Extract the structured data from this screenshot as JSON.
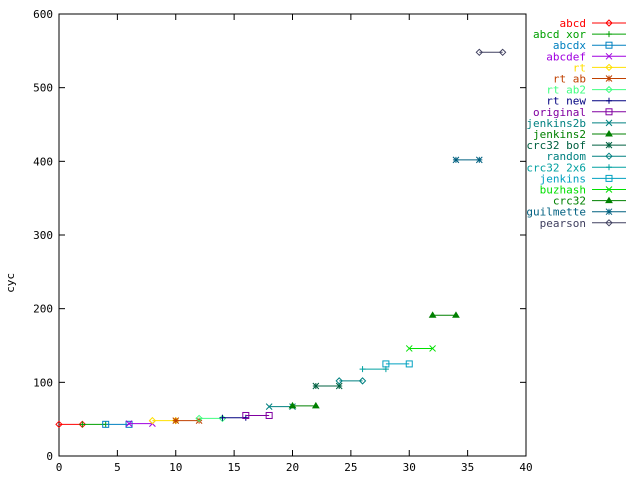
{
  "chart_data": {
    "type": "line",
    "title": "",
    "xlabel": "",
    "ylabel": "cyc",
    "xlim": [
      0,
      40
    ],
    "ylim": [
      0,
      600
    ],
    "x_ticks": [
      "0",
      "5",
      "10",
      "15",
      "20",
      "25",
      "30",
      "35",
      "40"
    ],
    "y_ticks": [
      "0",
      "100",
      "200",
      "300",
      "400",
      "500",
      "600"
    ],
    "grid": false,
    "legend_position": "right",
    "series": [
      {
        "name": "abcd",
        "color": "#ff0000",
        "marker": "diamond",
        "points": [
          [
            0,
            43
          ],
          [
            2,
            43
          ]
        ]
      },
      {
        "name": "abcd xor",
        "color": "#00a000",
        "marker": "plus",
        "points": [
          [
            2,
            43
          ],
          [
            4,
            43
          ]
        ]
      },
      {
        "name": "abcdx",
        "color": "#0080c0",
        "marker": "square",
        "points": [
          [
            4,
            43
          ],
          [
            6,
            43
          ]
        ]
      },
      {
        "name": "abcdef",
        "color": "#a000e0",
        "marker": "x",
        "points": [
          [
            6,
            44
          ],
          [
            8,
            44
          ]
        ]
      },
      {
        "name": "rt",
        "color": "#ffe000",
        "marker": "diamond",
        "points": [
          [
            8,
            48
          ],
          [
            10,
            48
          ]
        ]
      },
      {
        "name": "rt ab",
        "color": "#c04000",
        "marker": "star",
        "points": [
          [
            10,
            48
          ],
          [
            12,
            48
          ]
        ]
      },
      {
        "name": "rt ab2",
        "color": "#40ff80",
        "marker": "diamond",
        "points": [
          [
            12,
            51
          ],
          [
            14,
            51
          ]
        ]
      },
      {
        "name": "rt new",
        "color": "#000080",
        "marker": "plus",
        "points": [
          [
            14,
            52
          ],
          [
            16,
            52
          ]
        ]
      },
      {
        "name": "original",
        "color": "#8000a0",
        "marker": "square",
        "points": [
          [
            16,
            55
          ],
          [
            18,
            55
          ]
        ]
      },
      {
        "name": "jenkins2b",
        "color": "#008080",
        "marker": "x",
        "points": [
          [
            18,
            67
          ],
          [
            20,
            67
          ]
        ]
      },
      {
        "name": "jenkins2",
        "color": "#008000",
        "marker": "triangle",
        "points": [
          [
            20,
            68
          ],
          [
            22,
            68
          ]
        ]
      },
      {
        "name": "crc32 bof",
        "color": "#006040",
        "marker": "star",
        "points": [
          [
            22,
            95
          ],
          [
            24,
            95
          ]
        ]
      },
      {
        "name": "random",
        "color": "#008080",
        "marker": "diamond",
        "points": [
          [
            24,
            102
          ],
          [
            26,
            102
          ]
        ]
      },
      {
        "name": "crc32 2x6",
        "color": "#00a0a0",
        "marker": "plus",
        "points": [
          [
            26,
            118
          ],
          [
            28,
            118
          ]
        ]
      },
      {
        "name": "jenkins",
        "color": "#00a0c0",
        "marker": "square",
        "points": [
          [
            28,
            125
          ],
          [
            30,
            125
          ]
        ]
      },
      {
        "name": "buzhash",
        "color": "#00e000",
        "marker": "x",
        "points": [
          [
            30,
            146
          ],
          [
            32,
            146
          ]
        ]
      },
      {
        "name": "crc32",
        "color": "#008000",
        "marker": "triangle",
        "points": [
          [
            32,
            191
          ],
          [
            34,
            191
          ]
        ]
      },
      {
        "name": "guilmette",
        "color": "#006080",
        "marker": "star",
        "points": [
          [
            34,
            402
          ],
          [
            36,
            402
          ]
        ]
      },
      {
        "name": "pearson",
        "color": "#404060",
        "marker": "diamond",
        "points": [
          [
            36,
            548
          ],
          [
            38,
            548
          ]
        ]
      }
    ]
  }
}
